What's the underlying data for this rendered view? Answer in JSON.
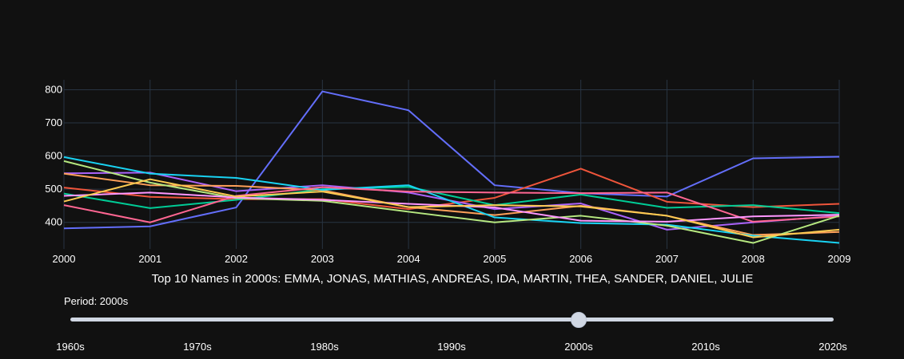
{
  "chart_data": {
    "type": "line",
    "title": "Top 10 Names in 2000s: EMMA, JONAS, MATHIAS, ANDREAS, IDA, MARTIN, THEA, SANDER, DANIEL, JULIE",
    "xlabel": "",
    "ylabel": "",
    "x": [
      2000,
      2001,
      2002,
      2003,
      2004,
      2005,
      2006,
      2007,
      2008,
      2009
    ],
    "xlim": [
      2000,
      2009
    ],
    "ylim": [
      320,
      830
    ],
    "yticks": [
      400,
      500,
      600,
      700,
      800
    ],
    "grid": true,
    "legend": "none",
    "series": [
      {
        "name": "EMMA",
        "color": "#636efa",
        "values": [
          382,
          388,
          445,
          795,
          738,
          512,
          488,
          478,
          593,
          598
        ]
      },
      {
        "name": "JONAS",
        "color": "#ef553b",
        "values": [
          505,
          477,
          470,
          470,
          440,
          474,
          562,
          462,
          446,
          456
        ]
      },
      {
        "name": "MATHIAS",
        "color": "#00cc96",
        "values": [
          487,
          443,
          468,
          500,
          507,
          452,
          484,
          444,
          452,
          428
        ]
      },
      {
        "name": "ANDREAS",
        "color": "#ab63fa",
        "values": [
          548,
          550,
          494,
          512,
          490,
          440,
          457,
          378,
          400,
          420
        ]
      },
      {
        "name": "IDA",
        "color": "#ffa15a",
        "values": [
          547,
          512,
          510,
          497,
          446,
          422,
          450,
          420,
          362,
          371
        ]
      },
      {
        "name": "MARTIN",
        "color": "#19d3f3",
        "values": [
          597,
          547,
          534,
          498,
          512,
          415,
          398,
          393,
          360,
          338
        ]
      },
      {
        "name": "THEA",
        "color": "#ff6692",
        "values": [
          452,
          400,
          480,
          506,
          493,
          490,
          488,
          490,
          402,
          418
        ]
      },
      {
        "name": "SANDER",
        "color": "#b6e880",
        "values": [
          585,
          520,
          473,
          465,
          432,
          400,
          420,
          390,
          338,
          420
        ]
      },
      {
        "name": "DANIEL",
        "color": "#ff97ff",
        "values": [
          480,
          490,
          475,
          468,
          456,
          445,
          405,
          402,
          418,
          423
        ]
      },
      {
        "name": "JULIE",
        "color": "#fecb52",
        "values": [
          463,
          530,
          478,
          493,
          446,
          452,
          448,
          420,
          355,
          378
        ]
      }
    ]
  },
  "slider": {
    "label": "Period: 2000s",
    "steps": [
      "1960s",
      "1970s",
      "1980s",
      "1990s",
      "2000s",
      "2010s",
      "2020s"
    ],
    "active_index": 4
  }
}
